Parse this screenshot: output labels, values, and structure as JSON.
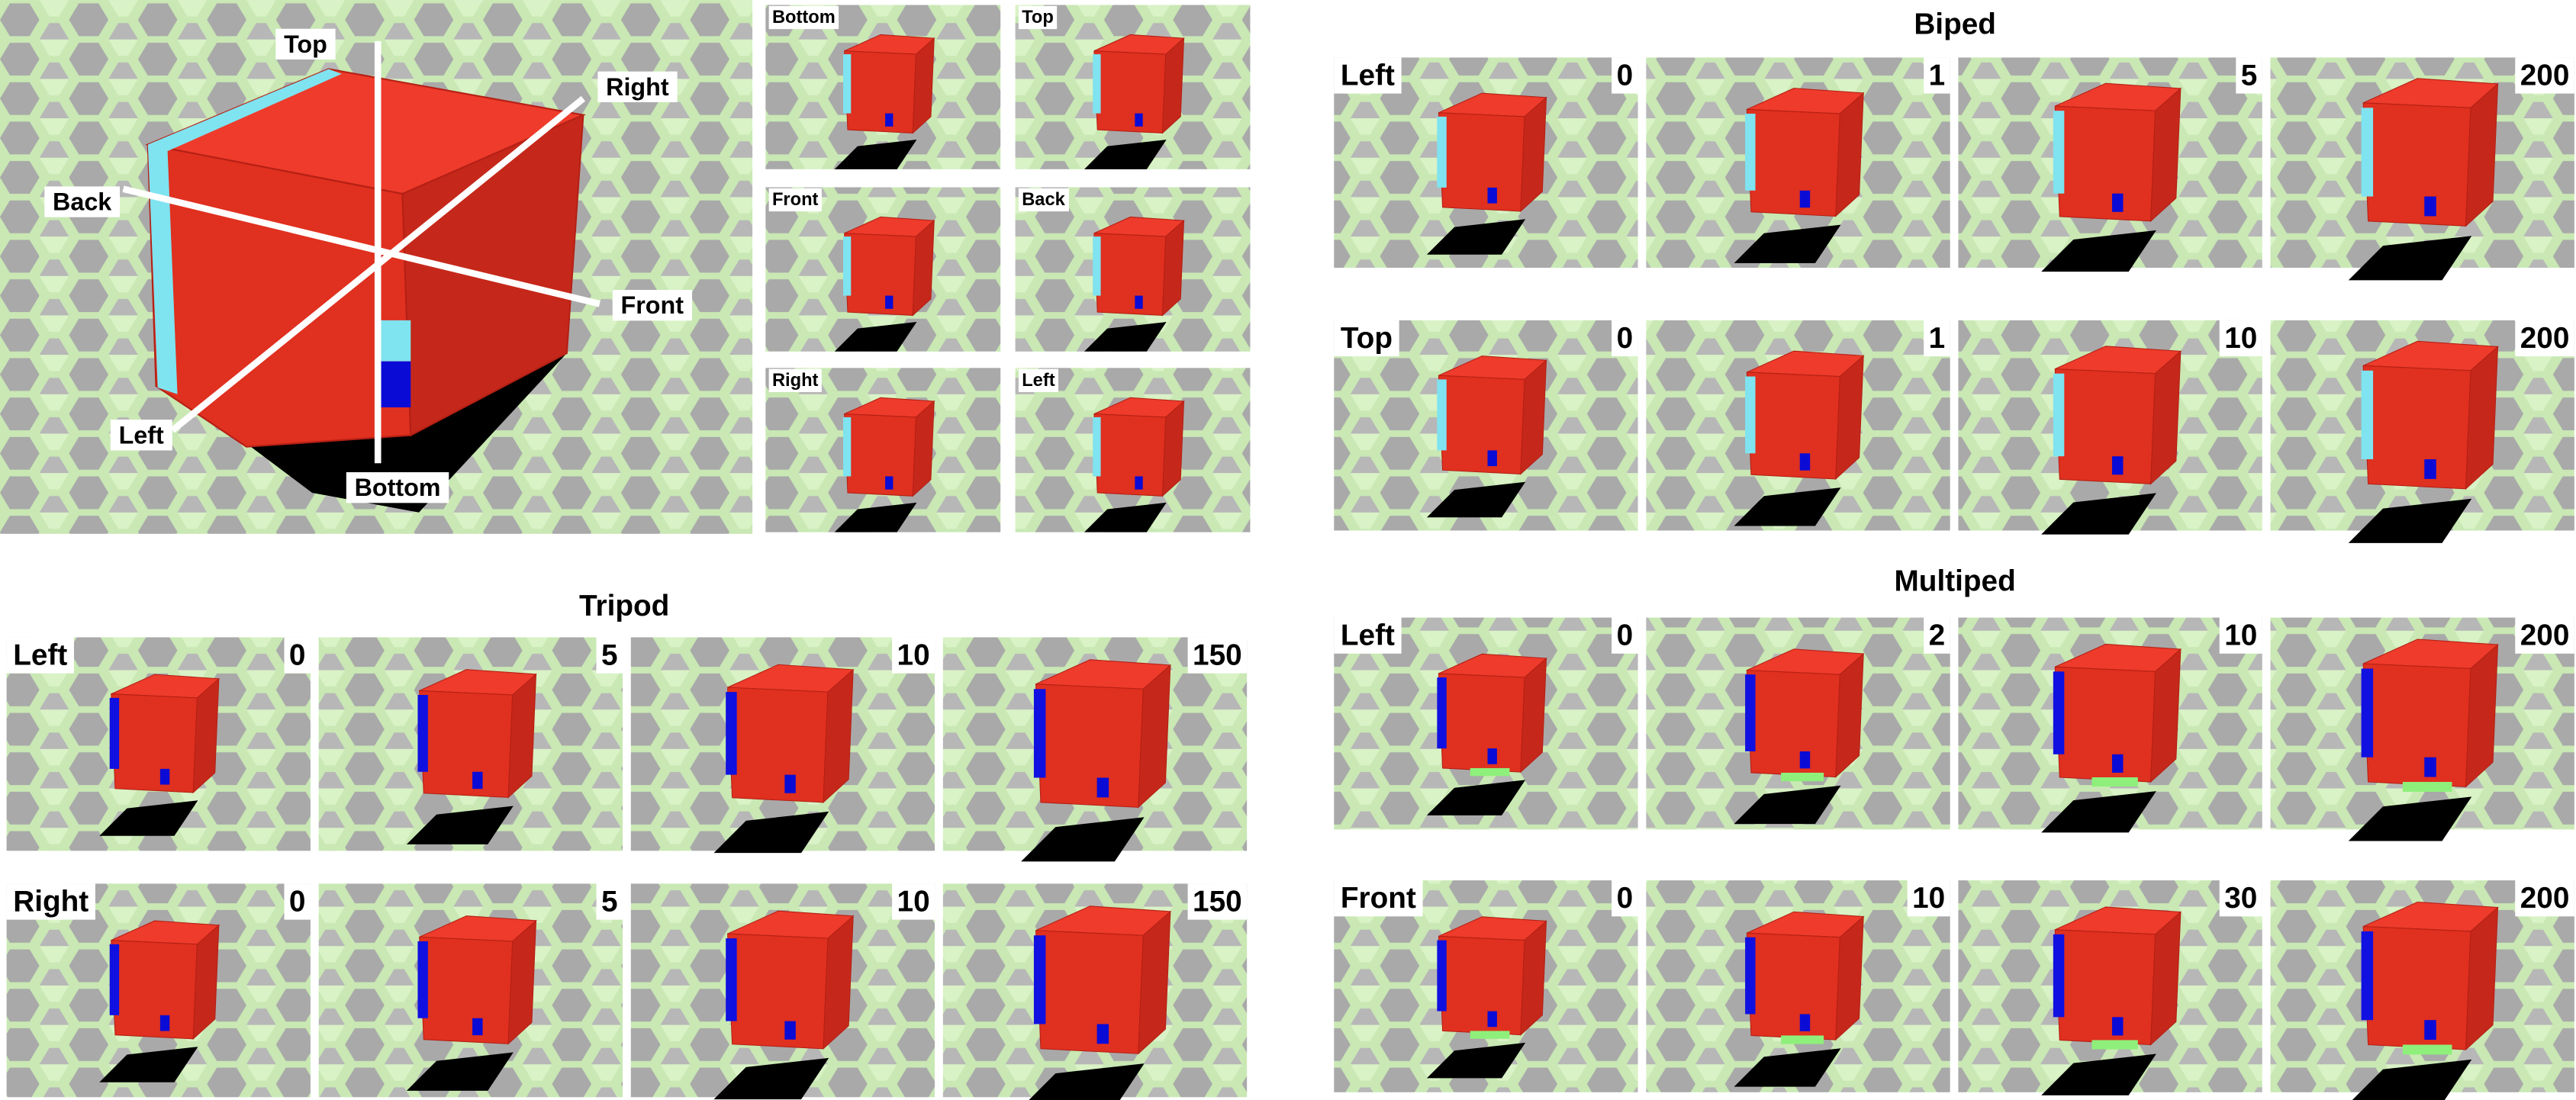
{
  "main": {
    "axes": [
      "Top",
      "Right",
      "Back",
      "Front",
      "Left",
      "Bottom"
    ]
  },
  "views": [
    "Bottom",
    "Top",
    "Front",
    "Back",
    "Right",
    "Left"
  ],
  "groups": [
    {
      "title": "Biped",
      "rows": [
        {
          "label": "Left",
          "steps": [
            0,
            1,
            5,
            200
          ]
        },
        {
          "label": "Top",
          "steps": [
            0,
            1,
            10,
            200
          ]
        }
      ]
    },
    {
      "title": "Multiped",
      "rows": [
        {
          "label": "Left",
          "steps": [
            0,
            2,
            10,
            200
          ]
        },
        {
          "label": "Front",
          "steps": [
            0,
            10,
            30,
            200
          ]
        }
      ]
    },
    {
      "title": "Tripod",
      "rows": [
        {
          "label": "Left",
          "steps": [
            0,
            5,
            10,
            150
          ]
        },
        {
          "label": "Right",
          "steps": [
            0,
            5,
            10,
            150
          ]
        }
      ]
    }
  ]
}
